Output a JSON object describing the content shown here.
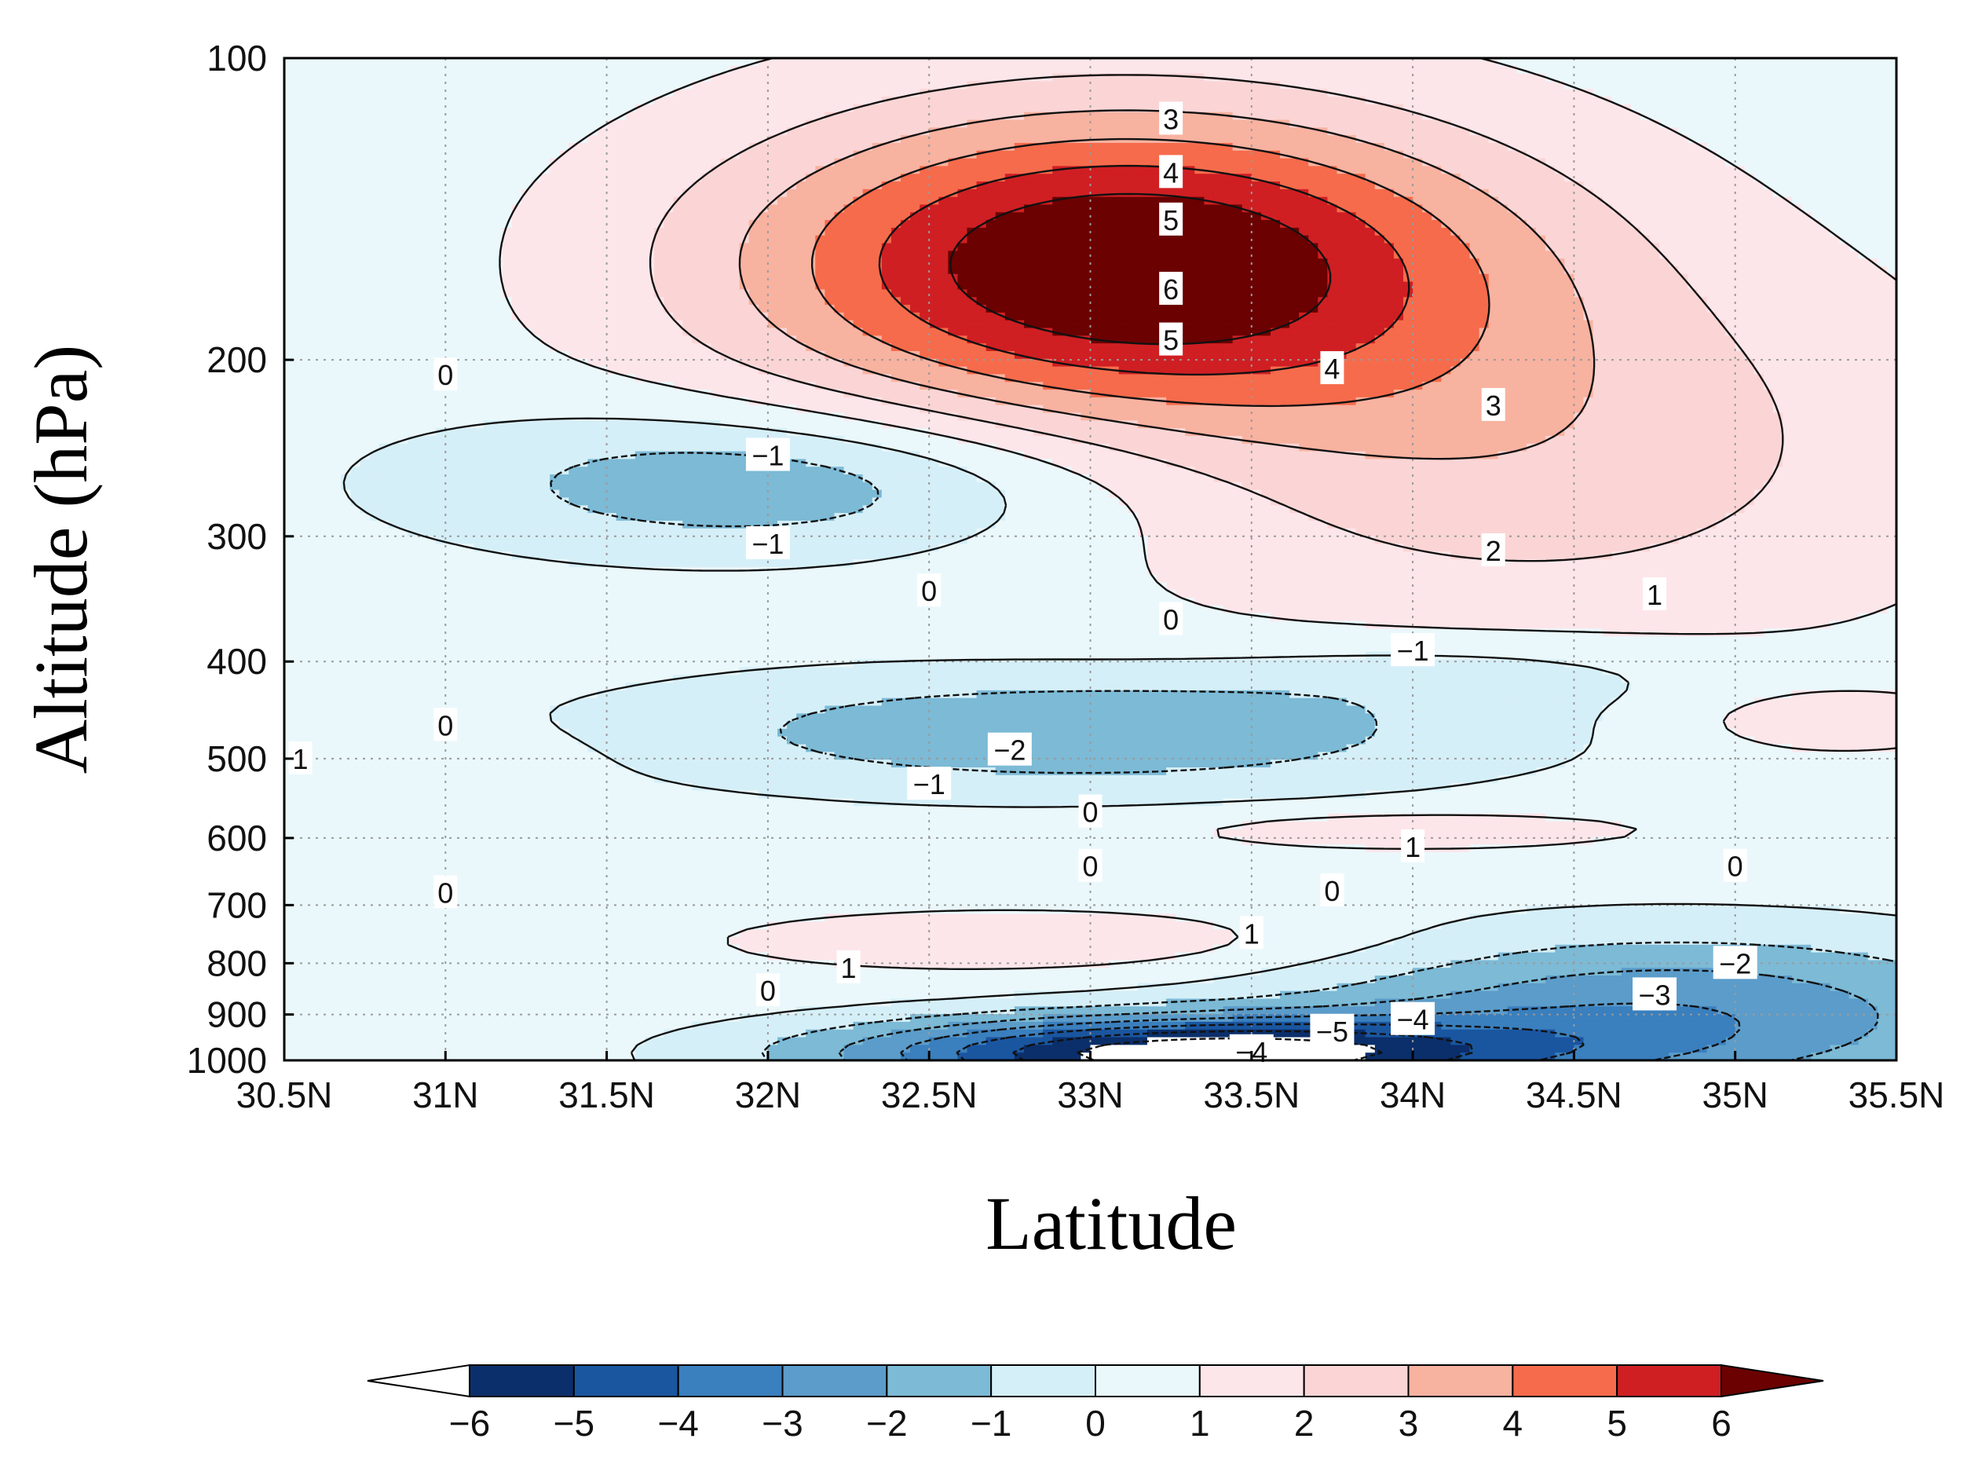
{
  "chart_data": {
    "type": "heatmap",
    "subtype": "filled-contour latitude-pressure cross-section",
    "xlabel": "Latitude",
    "ylabel": "Altitude (hPa)",
    "xlim": [
      30.5,
      35.5
    ],
    "ylim": [
      1000,
      100
    ],
    "x_ticks": [
      30.5,
      31,
      31.5,
      32,
      32.5,
      33,
      33.5,
      34,
      34.5,
      35,
      35.5
    ],
    "x_tick_labels": [
      "30.5N",
      "31N",
      "31.5N",
      "32N",
      "32.5N",
      "33N",
      "33.5N",
      "34N",
      "34.5N",
      "35N",
      "35.5N"
    ],
    "y_ticks": [
      100,
      200,
      300,
      400,
      500,
      600,
      700,
      800,
      900,
      1000
    ],
    "y_tick_labels": [
      "100",
      "200",
      "300",
      "400",
      "500",
      "600",
      "700",
      "800",
      "900",
      "1000"
    ],
    "grid": true,
    "colorbar": {
      "levels": [
        -6,
        -5,
        -4,
        -3,
        -2,
        -1,
        0,
        1,
        2,
        3,
        4,
        5,
        6
      ],
      "labels": [
        "−6",
        "−5",
        "−4",
        "−3",
        "−2",
        "−1",
        "0",
        "1",
        "2",
        "3",
        "4",
        "5",
        "6"
      ],
      "colors": [
        "#ffffff",
        "#0b2f6b",
        "#1a56a0",
        "#3a7fbe",
        "#5b9cca",
        "#7cbad6",
        "#d5eff8",
        "#eaf8fc",
        "#fde6ea",
        "#fbd5d5",
        "#f8b2a0",
        "#f66b4c",
        "#cf1f23",
        "#6b0101"
      ]
    },
    "features": [
      {
        "kind": "max",
        "lat": 33.1,
        "p": 160,
        "value": 6.5,
        "levels": [
          3,
          4,
          5,
          6
        ]
      },
      {
        "kind": "min",
        "lat": 33.3,
        "p": 985,
        "value": -6,
        "levels": [
          -1,
          -2,
          -3,
          -4,
          -5
        ]
      },
      {
        "kind": "min",
        "lat": 32.0,
        "p": 265,
        "value": -1.5,
        "levels": [
          -1
        ]
      },
      {
        "kind": "min",
        "lat": 32.6,
        "p": 480,
        "value": -2,
        "levels": [
          -1,
          -2
        ]
      },
      {
        "kind": "max",
        "lat": 32.8,
        "p": 760,
        "value": 1.5,
        "levels": [
          1
        ]
      },
      {
        "kind": "max",
        "lat": 34.0,
        "p": 575,
        "value": 1.5,
        "levels": [
          1
        ]
      }
    ],
    "contour_labels": [
      {
        "text": "3",
        "lat": 33.25,
        "p": 115
      },
      {
        "text": "4",
        "lat": 33.25,
        "p": 130
      },
      {
        "text": "5",
        "lat": 33.25,
        "p": 145
      },
      {
        "text": "6",
        "lat": 33.25,
        "p": 170
      },
      {
        "text": "5",
        "lat": 33.25,
        "p": 191
      },
      {
        "text": "4",
        "lat": 33.75,
        "p": 204
      },
      {
        "text": "3",
        "lat": 34.25,
        "p": 222
      },
      {
        "text": "2",
        "lat": 34.25,
        "p": 310
      },
      {
        "text": "1",
        "lat": 34.75,
        "p": 343
      },
      {
        "text": "0",
        "lat": 31.0,
        "p": 207
      },
      {
        "text": "−1",
        "lat": 32.0,
        "p": 249
      },
      {
        "text": "−1",
        "lat": 32.0,
        "p": 305
      },
      {
        "text": "0",
        "lat": 32.5,
        "p": 340
      },
      {
        "text": "0",
        "lat": 33.25,
        "p": 363
      },
      {
        "text": "−1",
        "lat": 34.0,
        "p": 390
      },
      {
        "text": "0",
        "lat": 31.0,
        "p": 463
      },
      {
        "text": "1",
        "lat": 30.55,
        "p": 500
      },
      {
        "text": "−2",
        "lat": 32.75,
        "p": 490
      },
      {
        "text": "−1",
        "lat": 32.5,
        "p": 530
      },
      {
        "text": "0",
        "lat": 33.0,
        "p": 565
      },
      {
        "text": "1",
        "lat": 34.0,
        "p": 612
      },
      {
        "text": "0",
        "lat": 33.0,
        "p": 640
      },
      {
        "text": "0",
        "lat": 35.0,
        "p": 640
      },
      {
        "text": "0",
        "lat": 31.0,
        "p": 680
      },
      {
        "text": "0",
        "lat": 33.75,
        "p": 677
      },
      {
        "text": "1",
        "lat": 33.5,
        "p": 747
      },
      {
        "text": "1",
        "lat": 32.25,
        "p": 808
      },
      {
        "text": "0",
        "lat": 32.0,
        "p": 852
      },
      {
        "text": "−2",
        "lat": 35.0,
        "p": 800
      },
      {
        "text": "−3",
        "lat": 34.75,
        "p": 860
      },
      {
        "text": "−4",
        "lat": 34.0,
        "p": 910
      },
      {
        "text": "−5",
        "lat": 33.75,
        "p": 935
      },
      {
        "text": "−4",
        "lat": 33.5,
        "p": 980
      }
    ]
  }
}
